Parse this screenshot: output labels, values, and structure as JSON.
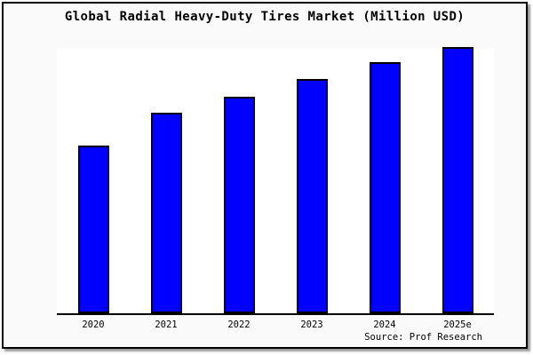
{
  "chart_data": {
    "type": "bar",
    "title": "Global Radial Heavy-Duty Tires Market (Million USD)",
    "categories": [
      "2020",
      "2021",
      "2022",
      "2023",
      "2024",
      "2025e"
    ],
    "values": [
      63,
      75.3,
      81.3,
      88,
      94.3,
      100
    ],
    "value_note": "no y-axis ticks or data labels shown; values estimated as percent of tallest (2025e) bar",
    "xlabel": "",
    "ylabel": "",
    "ylim": [
      0,
      100
    ],
    "grid": false,
    "legend_position": "none",
    "bar_color": "#0000ff",
    "bar_border_color": "#000000"
  },
  "source_note": "Source: Prof Research",
  "colors": {
    "page_background": "#ffffff",
    "chart_background": "#fafafa",
    "plot_background": "#ffffff",
    "frame_border": "#000000",
    "axis_line": "#000000",
    "text": "#000000"
  }
}
